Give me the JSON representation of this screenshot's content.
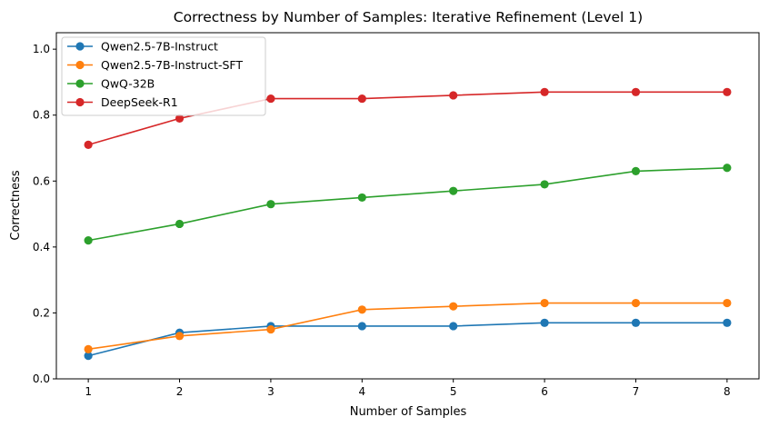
{
  "chart_data": {
    "type": "line",
    "title": "Correctness by Number of Samples: Iterative Refinement (Level 1)",
    "xlabel": "Number of Samples",
    "ylabel": "Correctness",
    "x": [
      1,
      2,
      3,
      4,
      5,
      6,
      7,
      8
    ],
    "x_ticks": [
      "1",
      "2",
      "3",
      "4",
      "5",
      "6",
      "7",
      "8"
    ],
    "xlim": [
      0.65,
      8.35
    ],
    "ylim": [
      0,
      1.05
    ],
    "y_ticks": [
      "0.0",
      "0.2",
      "0.4",
      "0.6",
      "0.8",
      "1.0"
    ],
    "grid": false,
    "legend_position": "top-left",
    "series": [
      {
        "name": "Qwen2.5-7B-Instruct",
        "color": "#1f77b4",
        "marker": "circle",
        "values": [
          0.07,
          0.14,
          0.16,
          0.16,
          0.16,
          0.17,
          0.17,
          0.17
        ]
      },
      {
        "name": "Qwen2.5-7B-Instruct-SFT",
        "color": "#ff7f0e",
        "marker": "circle",
        "values": [
          0.09,
          0.13,
          0.15,
          0.21,
          0.22,
          0.23,
          0.23,
          0.23
        ]
      },
      {
        "name": "QwQ-32B",
        "color": "#2ca02c",
        "marker": "circle",
        "values": [
          0.42,
          0.47,
          0.53,
          0.55,
          0.57,
          0.59,
          0.63,
          0.64
        ]
      },
      {
        "name": "DeepSeek-R1",
        "color": "#d62728",
        "marker": "circle",
        "values": [
          0.71,
          0.79,
          0.85,
          0.85,
          0.86,
          0.87,
          0.87,
          0.87
        ]
      }
    ]
  }
}
